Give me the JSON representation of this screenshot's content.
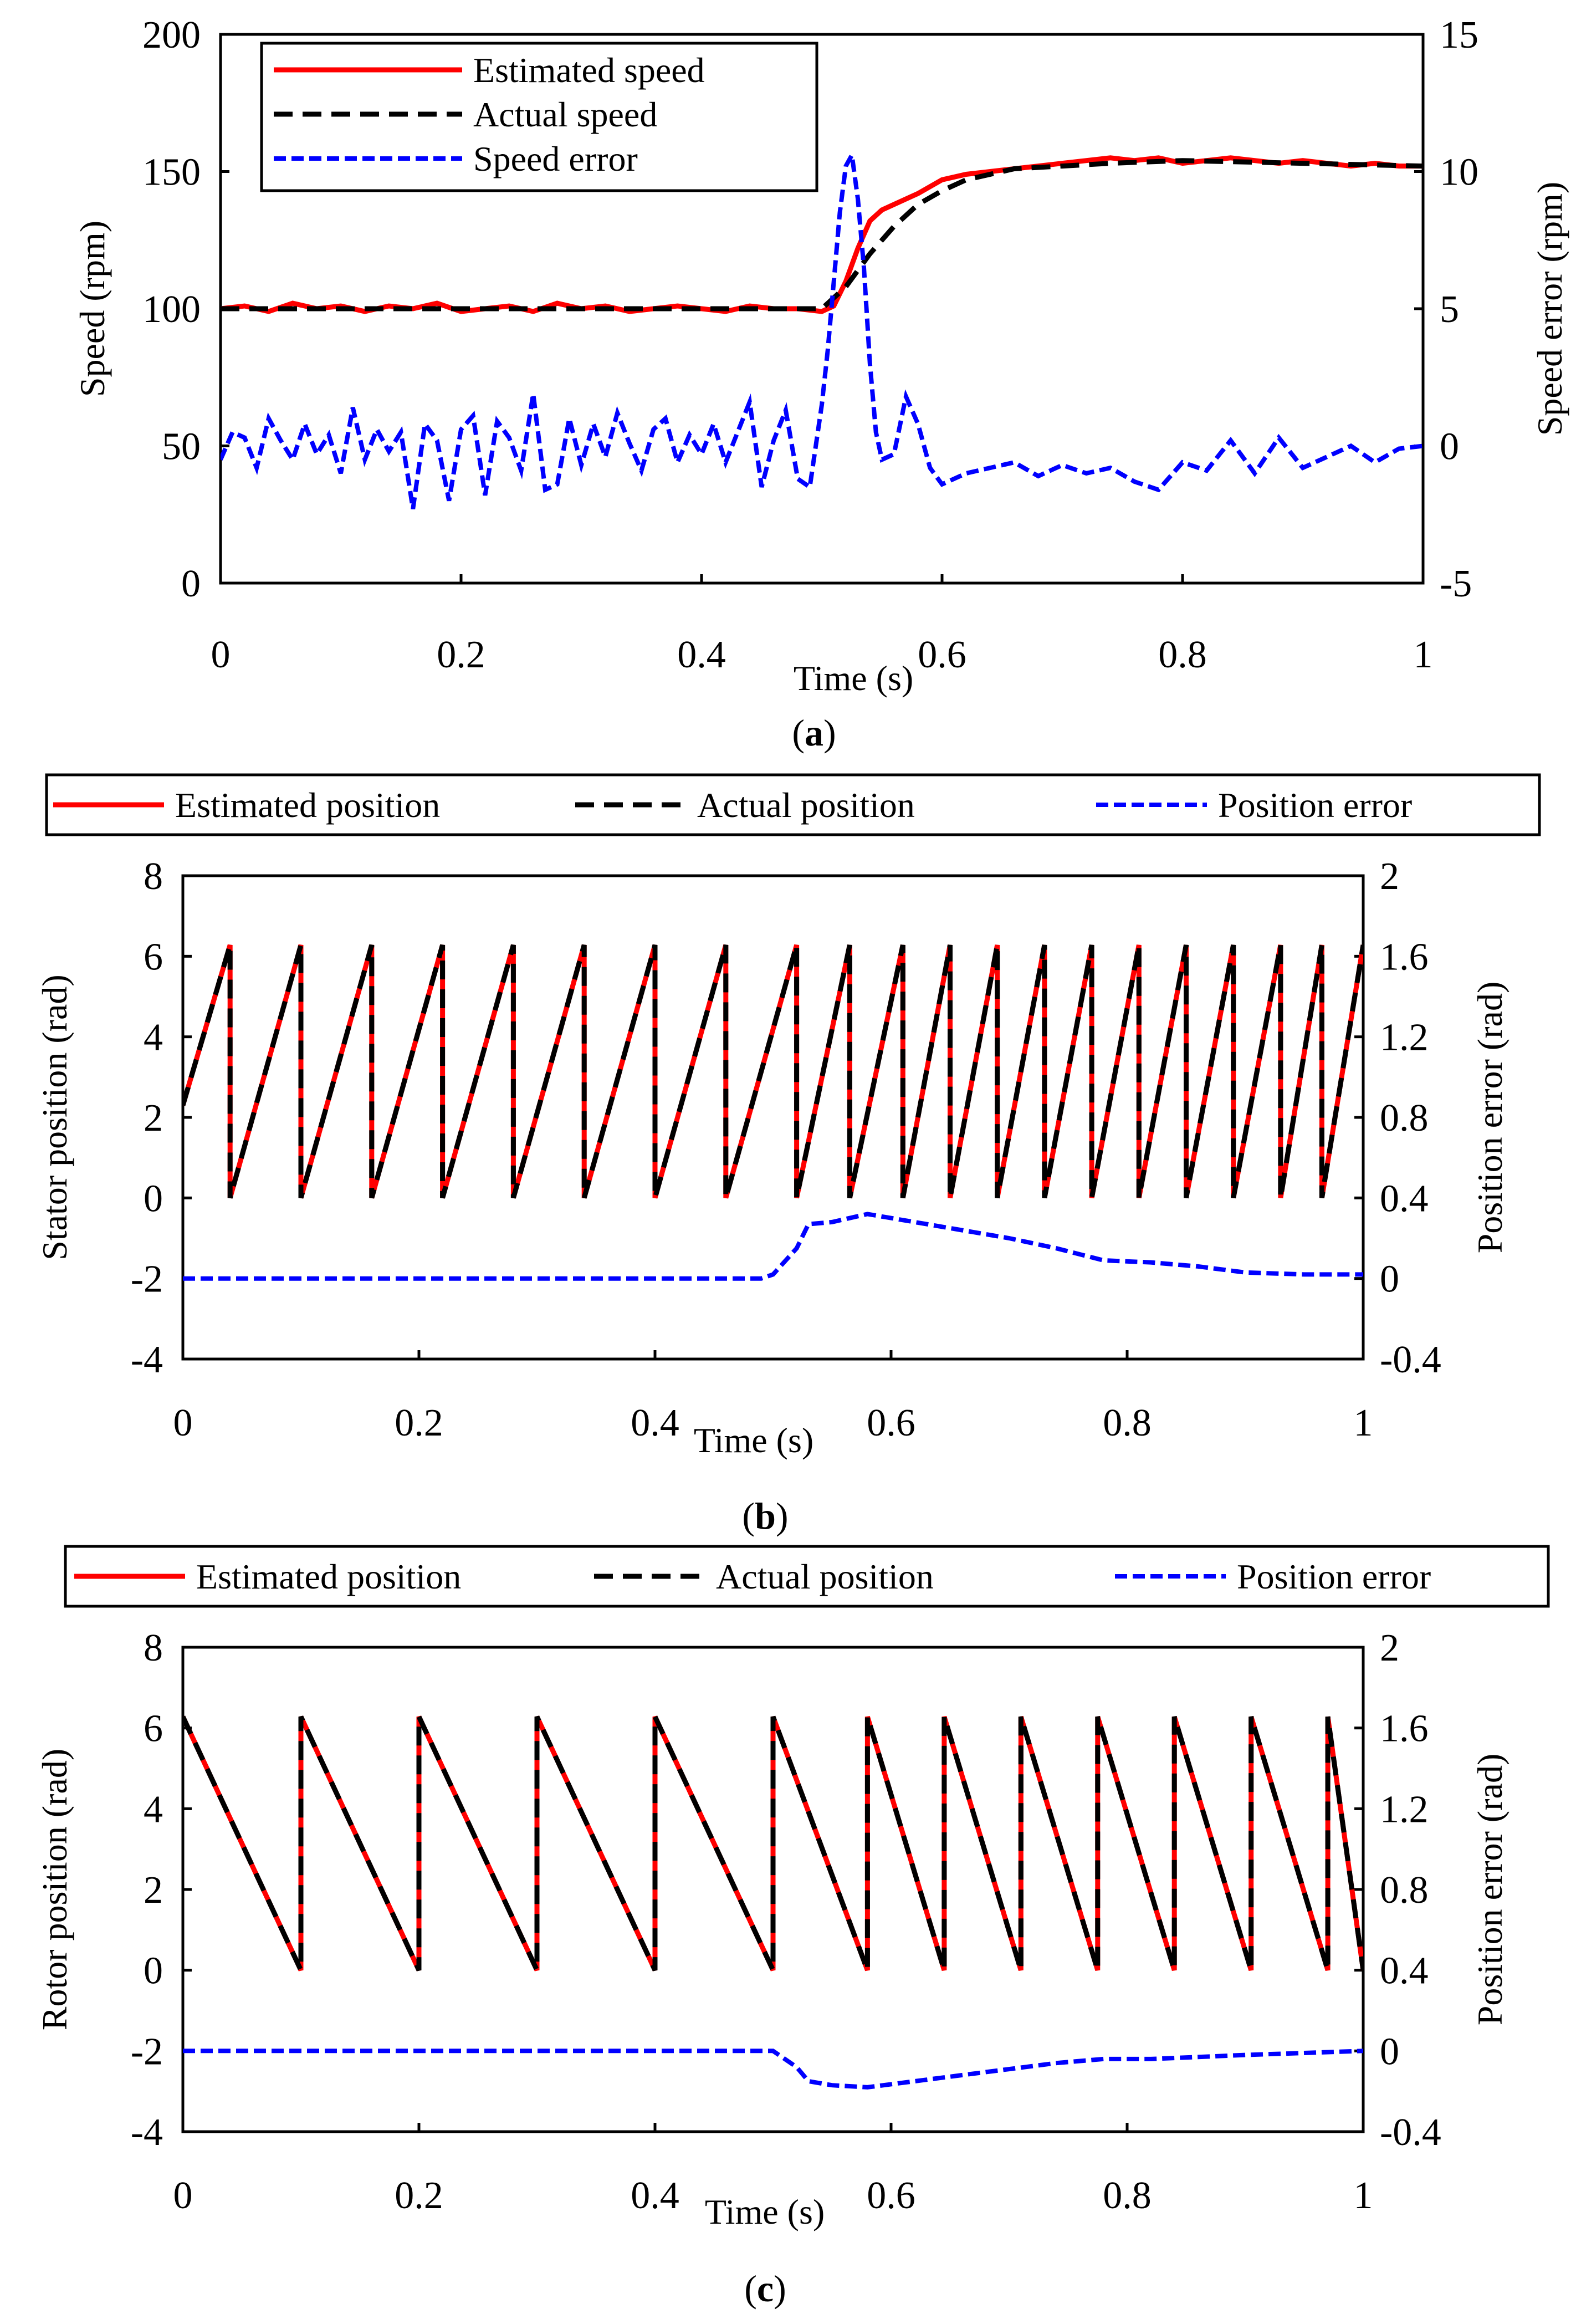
{
  "colors": {
    "estimated": "#ff0000",
    "actual": "#000000",
    "error": "#0000ff"
  },
  "chart_data": [
    {
      "id": "a",
      "caption_label": "a",
      "type": "line",
      "xlabel": "Time (s)",
      "ylabel": "Speed  (rpm)",
      "ylabel2": "Speed error (rpm)",
      "xlim": [
        0,
        1
      ],
      "ylim": [
        0,
        200
      ],
      "ylim2": [
        -5,
        15
      ],
      "xticks": [
        "0",
        "0.2",
        "0.4",
        "0.6",
        "0.8",
        "1"
      ],
      "yticks": [
        "0",
        "50",
        "100",
        "150",
        "200"
      ],
      "yticks2": [
        "-5",
        "0",
        "5",
        "10",
        "15"
      ],
      "legend": [
        "Estimated speed",
        "Actual speed",
        "Speed error"
      ],
      "legend_position": "top-left",
      "series": [
        {
          "name": "Estimated speed",
          "axis": "left",
          "style": "solid",
          "x": [
            0,
            0.02,
            0.04,
            0.06,
            0.08,
            0.1,
            0.12,
            0.14,
            0.16,
            0.18,
            0.2,
            0.22,
            0.24,
            0.26,
            0.28,
            0.3,
            0.32,
            0.34,
            0.36,
            0.38,
            0.4,
            0.42,
            0.44,
            0.46,
            0.48,
            0.5,
            0.51,
            0.52,
            0.53,
            0.54,
            0.55,
            0.56,
            0.58,
            0.6,
            0.62,
            0.64,
            0.66,
            0.68,
            0.7,
            0.72,
            0.74,
            0.76,
            0.78,
            0.8,
            0.82,
            0.84,
            0.86,
            0.88,
            0.9,
            0.92,
            0.94,
            0.96,
            0.98,
            1
          ],
          "y": [
            100,
            101,
            99,
            102,
            100,
            101,
            99,
            101,
            100,
            102,
            99,
            100,
            101,
            99,
            102,
            100,
            101,
            99,
            100,
            101,
            100,
            99,
            101,
            100,
            100,
            99,
            101,
            110,
            122,
            132,
            136,
            138,
            142,
            147,
            149,
            150,
            151,
            152,
            153,
            154,
            155,
            154,
            155,
            153,
            154,
            155,
            154,
            153,
            154,
            153,
            152,
            153,
            152,
            152
          ]
        },
        {
          "name": "Actual speed",
          "axis": "left",
          "style": "dashed",
          "x": [
            0,
            0.1,
            0.2,
            0.3,
            0.4,
            0.5,
            0.52,
            0.54,
            0.56,
            0.58,
            0.6,
            0.62,
            0.64,
            0.66,
            0.7,
            0.74,
            0.8,
            0.9,
            1
          ],
          "y": [
            100,
            100,
            100,
            100,
            100,
            100,
            108,
            120,
            130,
            138,
            143,
            147,
            149,
            151,
            152,
            153,
            154,
            153,
            152
          ]
        },
        {
          "name": "Speed error",
          "axis": "right",
          "style": "dotted-dash",
          "x": [
            0,
            0.01,
            0.02,
            0.03,
            0.04,
            0.05,
            0.06,
            0.07,
            0.08,
            0.09,
            0.1,
            0.11,
            0.12,
            0.13,
            0.14,
            0.15,
            0.16,
            0.17,
            0.18,
            0.19,
            0.2,
            0.21,
            0.22,
            0.23,
            0.24,
            0.25,
            0.26,
            0.27,
            0.28,
            0.29,
            0.3,
            0.31,
            0.32,
            0.33,
            0.34,
            0.35,
            0.36,
            0.37,
            0.38,
            0.39,
            0.4,
            0.41,
            0.42,
            0.43,
            0.44,
            0.45,
            0.46,
            0.47,
            0.48,
            0.49,
            0.5,
            0.505,
            0.51,
            0.515,
            0.52,
            0.525,
            0.53,
            0.535,
            0.54,
            0.545,
            0.55,
            0.56,
            0.57,
            0.58,
            0.59,
            0.6,
            0.62,
            0.64,
            0.66,
            0.68,
            0.7,
            0.72,
            0.74,
            0.76,
            0.78,
            0.8,
            0.82,
            0.84,
            0.86,
            0.88,
            0.9,
            0.92,
            0.94,
            0.96,
            0.98,
            1
          ],
          "y": [
            -0.5,
            0.5,
            0.3,
            -0.8,
            1.0,
            0.2,
            -0.5,
            0.8,
            -0.3,
            0.4,
            -1.0,
            1.4,
            -0.5,
            0.6,
            -0.2,
            0.5,
            -2.3,
            0.8,
            0.2,
            -2.0,
            0.6,
            1.1,
            -1.8,
            0.9,
            0.3,
            -0.9,
            1.9,
            -1.6,
            -1.4,
            1.0,
            -0.7,
            0.8,
            -0.4,
            1.2,
            0.1,
            -0.9,
            0.6,
            1.0,
            -0.6,
            0.4,
            -0.3,
            0.8,
            -0.6,
            0.5,
            1.6,
            -1.5,
            0.2,
            1.3,
            -1.2,
            -1.5,
            1.5,
            3.5,
            6.0,
            8.5,
            10.2,
            10.6,
            9.0,
            6.5,
            3.0,
            0.5,
            -0.5,
            -0.3,
            1.8,
            0.8,
            -0.8,
            -1.4,
            -1.0,
            -0.8,
            -0.6,
            -1.1,
            -0.7,
            -1.0,
            -0.8,
            -1.3,
            -1.6,
            -0.6,
            -0.9,
            0.2,
            -1.0,
            0.3,
            -0.8,
            -0.4,
            0.0,
            -0.6,
            -0.1,
            0.0
          ]
        }
      ]
    },
    {
      "id": "b",
      "caption_label": "b",
      "type": "line",
      "xlabel": "Time (s)",
      "ylabel": "Stator position (rad)",
      "ylabel2": "Position error (rad)",
      "xlim": [
        0,
        1
      ],
      "ylim": [
        -4,
        8
      ],
      "ylim2": [
        -0.4,
        2
      ],
      "xticks": [
        "0",
        "0.2",
        "0.4",
        "0.6",
        "0.8",
        "1"
      ],
      "yticks": [
        "-4",
        "-2",
        "0",
        "2",
        "4",
        "6",
        "8"
      ],
      "yticks2": [
        "-0.4",
        "0",
        "0.4",
        "0.8",
        "1.2",
        "1.6",
        "2"
      ],
      "legend": [
        "Estimated position",
        "Actual position",
        "Position error"
      ],
      "legend_position": "top",
      "sawtooth": {
        "direction": "rising",
        "min": 0,
        "max": 6.28,
        "start_value": 2.3,
        "wrap_times": [
          0.04,
          0.1,
          0.16,
          0.22,
          0.28,
          0.34,
          0.4,
          0.46,
          0.52,
          0.565,
          0.61,
          0.65,
          0.69,
          0.73,
          0.77,
          0.81,
          0.85,
          0.89,
          0.93,
          0.965,
          1.0
        ]
      },
      "series": [
        {
          "name": "Estimated position",
          "axis": "left",
          "style": "solid"
        },
        {
          "name": "Actual position",
          "axis": "left",
          "style": "dashed"
        },
        {
          "name": "Position error",
          "axis": "right",
          "style": "dotted-dash",
          "x": [
            0,
            0.1,
            0.2,
            0.3,
            0.4,
            0.49,
            0.5,
            0.52,
            0.53,
            0.55,
            0.58,
            0.62,
            0.66,
            0.7,
            0.74,
            0.78,
            0.82,
            0.86,
            0.9,
            0.95,
            1
          ],
          "y": [
            0,
            0.0,
            0.0,
            0.0,
            0.0,
            0.0,
            0.02,
            0.15,
            0.27,
            0.28,
            0.32,
            0.28,
            0.24,
            0.2,
            0.15,
            0.09,
            0.08,
            0.06,
            0.03,
            0.02,
            0.02
          ]
        }
      ]
    },
    {
      "id": "c",
      "caption_label": "c",
      "type": "line",
      "xlabel": "Time (s)",
      "ylabel": "Rotor position (rad)",
      "ylabel2": "Position error (rad)",
      "xlim": [
        0,
        1
      ],
      "ylim": [
        -4,
        8
      ],
      "ylim2": [
        -0.4,
        2
      ],
      "xticks": [
        "0",
        "0.2",
        "0.4",
        "0.6",
        "0.8",
        "1"
      ],
      "yticks": [
        "-4",
        "-2",
        "0",
        "2",
        "4",
        "6",
        "8"
      ],
      "yticks2": [
        "-0.4",
        "0",
        "0.4",
        "0.8",
        "1.2",
        "1.6",
        "2"
      ],
      "legend": [
        "Estimated position",
        "Actual position",
        "Position error"
      ],
      "legend_position": "top",
      "sawtooth": {
        "direction": "falling",
        "min": 0,
        "max": 6.28,
        "start_value": 6.28,
        "wrap_times": [
          0.1,
          0.2,
          0.3,
          0.4,
          0.5,
          0.58,
          0.645,
          0.71,
          0.775,
          0.84,
          0.905,
          0.97,
          1.0
        ]
      },
      "series": [
        {
          "name": "Estimated position",
          "axis": "left",
          "style": "solid"
        },
        {
          "name": "Actual position",
          "axis": "left",
          "style": "dashed"
        },
        {
          "name": "Position error",
          "axis": "right",
          "style": "dotted-dash",
          "x": [
            0,
            0.1,
            0.2,
            0.3,
            0.4,
            0.49,
            0.5,
            0.52,
            0.53,
            0.55,
            0.58,
            0.62,
            0.66,
            0.7,
            0.74,
            0.78,
            0.82,
            0.86,
            0.9,
            0.95,
            1
          ],
          "y": [
            0,
            0.0,
            0.0,
            0.0,
            0.0,
            0.0,
            0.0,
            -0.08,
            -0.15,
            -0.17,
            -0.18,
            -0.15,
            -0.12,
            -0.09,
            -0.06,
            -0.04,
            -0.04,
            -0.03,
            -0.02,
            -0.01,
            0.0
          ]
        }
      ]
    }
  ]
}
